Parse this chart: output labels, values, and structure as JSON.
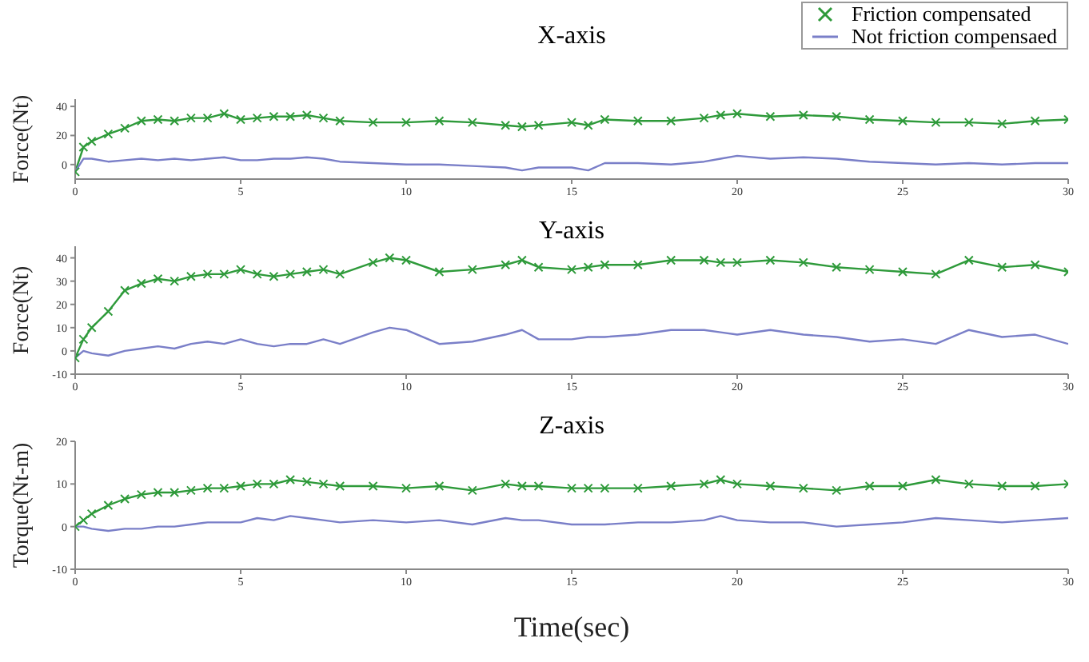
{
  "chart_data": [
    {
      "type": "line",
      "title": "X-axis",
      "ylabel": "Force(Nt)",
      "legend": "top right",
      "xlim": [
        0,
        30
      ],
      "xticks": [
        0,
        5,
        10,
        15,
        20,
        25,
        30
      ],
      "ylim": [
        -10,
        45
      ],
      "yticks": [
        0,
        20,
        40
      ],
      "grid": false,
      "x": [
        0,
        0.25,
        0.5,
        1,
        1.5,
        2,
        2.5,
        3,
        3.5,
        4,
        4.5,
        5,
        5.5,
        6,
        6.5,
        7,
        7.5,
        8,
        9,
        10,
        11,
        12,
        13,
        13.5,
        14,
        15,
        15.5,
        16,
        17,
        18,
        19,
        19.5,
        20,
        21,
        22,
        23,
        24,
        25,
        26,
        27,
        28,
        29,
        30
      ],
      "series": [
        {
          "name": "Friction compensated",
          "color": "#2e9a3a",
          "marker": "cross",
          "values": [
            -5,
            12,
            16,
            21,
            25,
            30,
            31,
            30,
            32,
            32,
            35,
            31,
            32,
            33,
            33,
            34,
            32,
            30,
            29,
            29,
            30,
            29,
            27,
            26,
            27,
            29,
            27,
            31,
            30,
            30,
            32,
            34,
            35,
            33,
            34,
            33,
            31,
            30,
            29,
            29,
            28,
            30,
            31
          ]
        },
        {
          "name": "Not friction compensaed",
          "color": "#7a7fc8",
          "values": [
            -5,
            4,
            4,
            2,
            3,
            4,
            3,
            4,
            3,
            4,
            5,
            3,
            3,
            4,
            4,
            5,
            4,
            2,
            1,
            0,
            0,
            -1,
            -2,
            -4,
            -2,
            -2,
            -4,
            1,
            1,
            0,
            2,
            4,
            6,
            4,
            5,
            4,
            2,
            1,
            0,
            1,
            0,
            1,
            1
          ]
        }
      ]
    },
    {
      "type": "line",
      "title": "Y-axis",
      "ylabel": "Force(Nt)",
      "xlim": [
        0,
        30
      ],
      "xticks": [
        0,
        5,
        10,
        15,
        20,
        25,
        30
      ],
      "ylim": [
        -10,
        45
      ],
      "yticks": [
        -10,
        0,
        10,
        20,
        30,
        40
      ],
      "grid": false,
      "x": [
        0,
        0.25,
        0.5,
        1,
        1.5,
        2,
        2.5,
        3,
        3.5,
        4,
        4.5,
        5,
        5.5,
        6,
        6.5,
        7,
        7.5,
        8,
        9,
        9.5,
        10,
        11,
        12,
        13,
        13.5,
        14,
        15,
        15.5,
        16,
        17,
        18,
        19,
        19.5,
        20,
        21,
        22,
        23,
        24,
        25,
        26,
        27,
        28,
        29,
        30
      ],
      "series": [
        {
          "color": "#2e9a3a",
          "marker": "cross",
          "values": [
            -3,
            5,
            10,
            17,
            26,
            29,
            31,
            30,
            32,
            33,
            33,
            35,
            33,
            32,
            33,
            34,
            35,
            33,
            38,
            40,
            39,
            34,
            35,
            37,
            39,
            36,
            35,
            36,
            37,
            37,
            39,
            39,
            38,
            38,
            39,
            38,
            36,
            35,
            34,
            33,
            39,
            36,
            37,
            34
          ]
        },
        {
          "color": "#7a7fc8",
          "values": [
            -3,
            0,
            -1,
            -2,
            0,
            1,
            2,
            1,
            3,
            4,
            3,
            5,
            3,
            2,
            3,
            3,
            5,
            3,
            8,
            10,
            9,
            3,
            4,
            7,
            9,
            5,
            5,
            6,
            6,
            7,
            9,
            9,
            8,
            7,
            9,
            7,
            6,
            4,
            5,
            3,
            9,
            6,
            7,
            3
          ]
        }
      ]
    },
    {
      "type": "line",
      "title": "Z-axis",
      "ylabel": "Torque(Nt-m)",
      "xlabel": "Time(sec)",
      "xlim": [
        0,
        30
      ],
      "xticks": [
        0,
        5,
        10,
        15,
        20,
        25,
        30
      ],
      "ylim": [
        -10,
        20
      ],
      "yticks": [
        -10,
        0,
        10,
        20
      ],
      "grid": false,
      "x": [
        0,
        0.25,
        0.5,
        1,
        1.5,
        2,
        2.5,
        3,
        3.5,
        4,
        4.5,
        5,
        5.5,
        6,
        6.5,
        7,
        7.5,
        8,
        9,
        10,
        11,
        12,
        13,
        13.5,
        14,
        15,
        15.5,
        16,
        17,
        18,
        19,
        19.5,
        20,
        21,
        22,
        23,
        24,
        25,
        26,
        27,
        28,
        29,
        30
      ],
      "series": [
        {
          "color": "#2e9a3a",
          "marker": "cross",
          "values": [
            0,
            1.5,
            3,
            5,
            6.5,
            7.5,
            8,
            8,
            8.5,
            9,
            9,
            9.5,
            10,
            10,
            11,
            10.5,
            10,
            9.5,
            9.5,
            9,
            9.5,
            8.5,
            10,
            9.5,
            9.5,
            9,
            9,
            9,
            9,
            9.5,
            10,
            11,
            10,
            9.5,
            9,
            8.5,
            9.5,
            9.5,
            11,
            10,
            9.5,
            9.5,
            10
          ]
        },
        {
          "color": "#7a7fc8",
          "values": [
            0,
            0,
            -0.5,
            -1,
            -0.5,
            -0.5,
            0,
            0,
            0.5,
            1,
            1,
            1,
            2,
            1.5,
            2.5,
            2,
            1.5,
            1,
            1.5,
            1,
            1.5,
            0.5,
            2,
            1.5,
            1.5,
            0.5,
            0.5,
            0.5,
            1,
            1,
            1.5,
            2.5,
            1.5,
            1,
            1,
            0,
            0.5,
            1,
            2,
            1.5,
            1,
            1.5,
            2
          ]
        }
      ]
    }
  ]
}
